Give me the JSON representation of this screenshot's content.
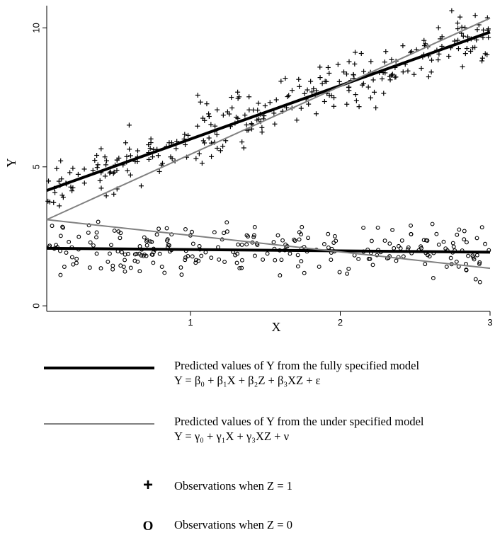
{
  "chart_data": {
    "type": "scatter",
    "title": "",
    "xlabel": "X",
    "ylabel": "Y",
    "xlim": [
      0.04,
      3.0
    ],
    "ylim": [
      -0.2,
      10.8
    ],
    "xticks": [
      1,
      2,
      3
    ],
    "yticks": [
      0,
      5,
      10
    ],
    "grid": false,
    "lines": [
      {
        "name": "full_z1",
        "style": "thick-black",
        "x": [
          0.04,
          3.0
        ],
        "y": [
          4.15,
          9.85
        ]
      },
      {
        "name": "full_z0",
        "style": "thick-black",
        "x": [
          0.04,
          3.0
        ],
        "y": [
          2.07,
          1.93
        ]
      },
      {
        "name": "under_z1",
        "style": "thin-gray",
        "x": [
          0.04,
          3.0
        ],
        "y": [
          3.1,
          10.35
        ]
      },
      {
        "name": "under_z0",
        "style": "thin-gray",
        "x": [
          0.04,
          3.0
        ],
        "y": [
          3.1,
          1.35
        ]
      }
    ],
    "scatter_series": [
      {
        "name": "Z=1",
        "marker": "plus",
        "n": 300,
        "x_range": [
          0.04,
          3.0
        ],
        "intercept": 4.15,
        "slope": 1.93,
        "spread": 0.48,
        "seed": 7
      },
      {
        "name": "Z=0",
        "marker": "circle",
        "n": 260,
        "x_range": [
          0.04,
          3.0
        ],
        "intercept": 2.07,
        "slope": -0.05,
        "spread": 0.45,
        "seed": 13
      }
    ]
  },
  "legend": {
    "full_model_line1": "Predicted values of Y from the fully specified model",
    "full_model_line2": "Y = β₀ + β₁X + β₂Z + β₃XZ + ε",
    "under_model_line1": "Predicted values of Y from the under specified model",
    "under_model_line2": "Y = γ₀ + γ₁X + γ₃XZ + ν",
    "plus_symbol": "+",
    "plus_label": "Observations when Z = 1",
    "circle_symbol": "O",
    "circle_label": "Observations when Z = 0"
  },
  "colors": {
    "full_line": "#000000",
    "under_line": "#808080",
    "markers": "#000000"
  }
}
